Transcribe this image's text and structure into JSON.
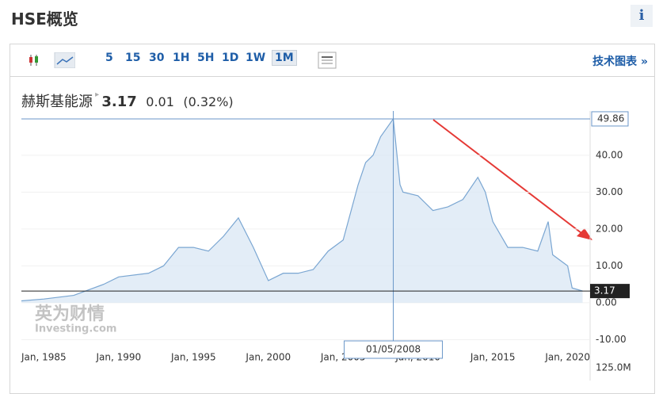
{
  "header": {
    "title": "HSE概览",
    "info": "i"
  },
  "toolbar": {
    "buttons": [
      "5",
      "15",
      "30",
      "1H",
      "5H",
      "1D",
      "1W",
      "1M"
    ],
    "link": "技术图表 »"
  },
  "quote": {
    "name": "赫斯基能源",
    "price": "3.17",
    "change": "0.01",
    "percent": "(0.32%)"
  },
  "watermark": {
    "brand": "英为财情",
    "site": "Investing.com"
  },
  "chart_data": {
    "type": "area",
    "color": "#7aa6d2",
    "x": [
      1983.5,
      1985,
      1987,
      1988,
      1989,
      1990,
      1992,
      1993,
      1994,
      1995,
      1996,
      1997,
      1998,
      1999,
      2000,
      2001,
      2002,
      2003,
      2004,
      2005,
      2006,
      2006.5,
      2007,
      2007.5,
      2008.35,
      2008.8,
      2009,
      2010,
      2011,
      2012,
      2013,
      2014,
      2014.5,
      2015,
      2016,
      2017,
      2018,
      2018.7,
      2019,
      2020,
      2020.3,
      2021
    ],
    "values": [
      0.5,
      1,
      2,
      3.5,
      5,
      7,
      8,
      10,
      15,
      15,
      14,
      18,
      23,
      15,
      6,
      8,
      8,
      9,
      14,
      17,
      32,
      38,
      40,
      45,
      49.86,
      32,
      30,
      29,
      25,
      26,
      28,
      34,
      30,
      22,
      15,
      15,
      14,
      22,
      13,
      10,
      4,
      3.17
    ],
    "xlim": [
      1983.5,
      2021.5
    ],
    "xticks": [
      {
        "value": 1985,
        "label": "Jan, 1985"
      },
      {
        "value": 1990,
        "label": "Jan, 1990"
      },
      {
        "value": 1995,
        "label": "Jan, 1995"
      },
      {
        "value": 2000,
        "label": "Jan, 2000"
      },
      {
        "value": 2005,
        "label": "Jan, 2005"
      },
      {
        "value": 2010,
        "label": "Jan, 2010"
      },
      {
        "value": 2015,
        "label": "Jan, 2015"
      },
      {
        "value": 2020,
        "label": "Jan, 2020"
      }
    ],
    "ylim": [
      -12.5,
      52
    ],
    "yticks": [
      {
        "value": -10,
        "label": "-10.00"
      },
      {
        "value": 0,
        "label": "0.00"
      },
      {
        "value": 10,
        "label": "10.00"
      },
      {
        "value": 20,
        "label": "20.00"
      },
      {
        "value": 30,
        "label": "30.00"
      },
      {
        "value": 40,
        "label": "40.00"
      }
    ],
    "high": 49.86,
    "last": 3.17,
    "crosshair_label": "01/05/2008",
    "volume_label": "125.0M"
  }
}
